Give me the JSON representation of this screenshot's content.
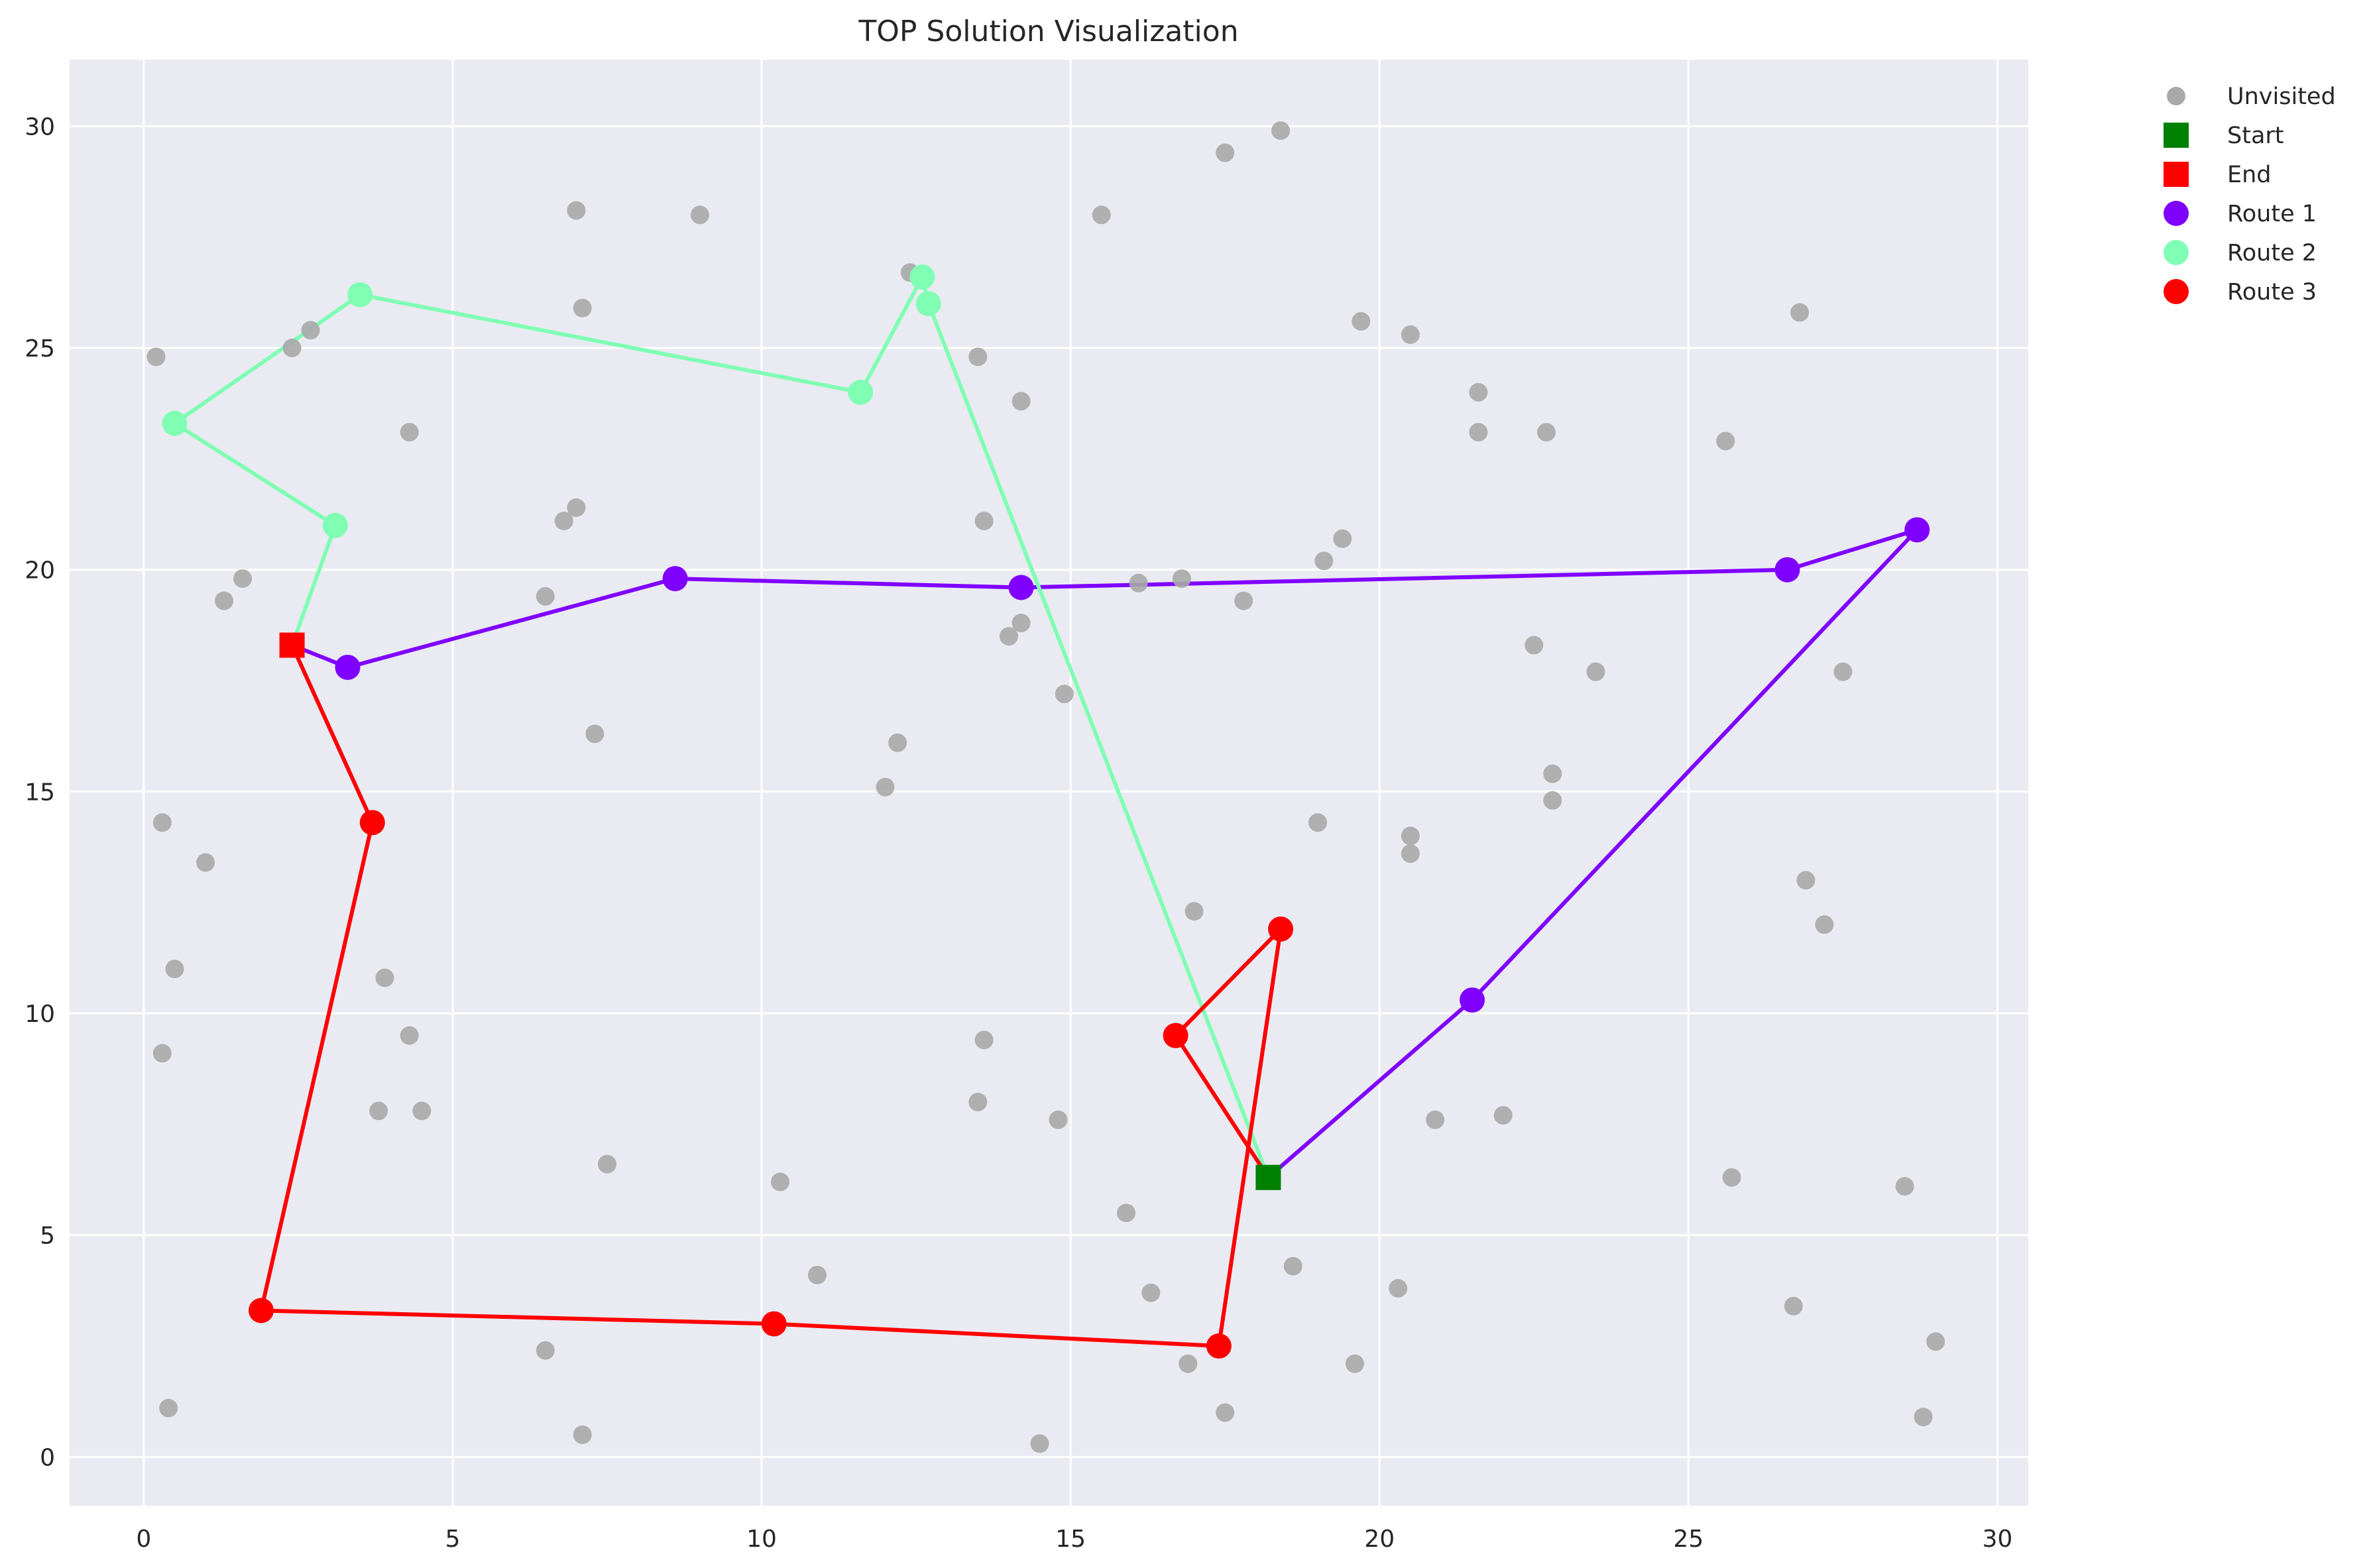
{
  "chart_data": {
    "type": "scatter",
    "title": "TOP Solution Visualization",
    "xlabel": "",
    "ylabel": "",
    "xlim": [
      -1.2,
      30.5
    ],
    "ylim": [
      -1.1,
      31.5
    ],
    "xticks": [
      0,
      5,
      10,
      15,
      20,
      25,
      30
    ],
    "yticks": [
      0,
      5,
      10,
      15,
      20,
      25,
      30
    ],
    "grid": true,
    "legend_position": "outside-top-right",
    "unvisited": {
      "name": "Unvisited",
      "color": "#a9a9a9",
      "points": [
        [
          0.2,
          24.8
        ],
        [
          0.3,
          14.3
        ],
        [
          0.3,
          9.1
        ],
        [
          0.4,
          1.1
        ],
        [
          0.5,
          11.0
        ],
        [
          1.0,
          13.4
        ],
        [
          1.3,
          19.3
        ],
        [
          1.6,
          19.8
        ],
        [
          2.4,
          25.0
        ],
        [
          2.7,
          25.4
        ],
        [
          3.8,
          7.8
        ],
        [
          3.9,
          10.8
        ],
        [
          4.3,
          23.1
        ],
        [
          4.3,
          9.5
        ],
        [
          4.5,
          7.8
        ],
        [
          6.5,
          19.4
        ],
        [
          6.5,
          2.4
        ],
        [
          6.8,
          21.1
        ],
        [
          7.0,
          21.4
        ],
        [
          7.0,
          28.1
        ],
        [
          7.1,
          25.9
        ],
        [
          7.1,
          0.5
        ],
        [
          7.3,
          16.3
        ],
        [
          7.5,
          6.6
        ],
        [
          9.0,
          28.0
        ],
        [
          10.3,
          6.2
        ],
        [
          10.9,
          4.1
        ],
        [
          12.0,
          15.1
        ],
        [
          12.2,
          16.1
        ],
        [
          12.4,
          26.7
        ],
        [
          13.5,
          24.8
        ],
        [
          13.5,
          8.0
        ],
        [
          13.6,
          21.1
        ],
        [
          13.6,
          9.4
        ],
        [
          14.0,
          18.5
        ],
        [
          14.2,
          18.8
        ],
        [
          14.2,
          23.8
        ],
        [
          14.5,
          0.3
        ],
        [
          14.8,
          7.6
        ],
        [
          14.9,
          17.2
        ],
        [
          15.5,
          28.0
        ],
        [
          15.9,
          5.5
        ],
        [
          16.1,
          19.7
        ],
        [
          16.3,
          3.7
        ],
        [
          16.8,
          19.8
        ],
        [
          16.9,
          2.1
        ],
        [
          17.0,
          12.3
        ],
        [
          17.5,
          29.4
        ],
        [
          17.5,
          1.0
        ],
        [
          17.8,
          19.3
        ],
        [
          18.4,
          29.9
        ],
        [
          18.6,
          4.3
        ],
        [
          19.0,
          14.3
        ],
        [
          19.1,
          20.2
        ],
        [
          19.4,
          20.7
        ],
        [
          19.6,
          2.1
        ],
        [
          19.7,
          25.6
        ],
        [
          20.3,
          3.8
        ],
        [
          20.5,
          25.3
        ],
        [
          20.5,
          14.0
        ],
        [
          20.5,
          13.6
        ],
        [
          20.9,
          7.6
        ],
        [
          21.6,
          24.0
        ],
        [
          21.6,
          23.1
        ],
        [
          22.0,
          7.7
        ],
        [
          22.5,
          18.3
        ],
        [
          22.7,
          23.1
        ],
        [
          22.8,
          15.4
        ],
        [
          22.8,
          14.8
        ],
        [
          23.5,
          17.7
        ],
        [
          25.6,
          22.9
        ],
        [
          25.7,
          6.3
        ],
        [
          26.7,
          3.4
        ],
        [
          26.8,
          25.8
        ],
        [
          26.9,
          13.0
        ],
        [
          27.2,
          12.0
        ],
        [
          27.5,
          17.7
        ],
        [
          28.5,
          6.1
        ],
        [
          28.8,
          0.9
        ],
        [
          29.0,
          2.6
        ]
      ]
    },
    "start": {
      "name": "Start",
      "color": "#008000",
      "point": [
        18.2,
        6.3
      ]
    },
    "end": {
      "name": "End",
      "color": "#ff0000",
      "point": [
        2.4,
        18.3
      ]
    },
    "series": [
      {
        "name": "Route 1",
        "color": "#7f00ff",
        "points": [
          [
            18.2,
            6.3
          ],
          [
            21.5,
            10.3
          ],
          [
            28.7,
            20.9
          ],
          [
            26.6,
            20.0
          ],
          [
            14.2,
            19.6
          ],
          [
            8.6,
            19.8
          ],
          [
            3.3,
            17.8
          ],
          [
            2.4,
            18.3
          ]
        ]
      },
      {
        "name": "Route 2",
        "color": "#80ffb4",
        "points": [
          [
            18.2,
            6.3
          ],
          [
            12.7,
            26.0
          ],
          [
            12.6,
            26.6
          ],
          [
            11.6,
            24.0
          ],
          [
            3.5,
            26.2
          ],
          [
            0.5,
            23.3
          ],
          [
            3.1,
            21.0
          ],
          [
            2.4,
            18.3
          ]
        ]
      },
      {
        "name": "Route 3",
        "color": "#ff0000",
        "points": [
          [
            18.2,
            6.3
          ],
          [
            16.7,
            9.5
          ],
          [
            18.4,
            11.9
          ],
          [
            17.4,
            2.5
          ],
          [
            10.2,
            3.0
          ],
          [
            1.9,
            3.3
          ],
          [
            3.7,
            14.3
          ],
          [
            2.4,
            18.3
          ]
        ]
      }
    ]
  }
}
